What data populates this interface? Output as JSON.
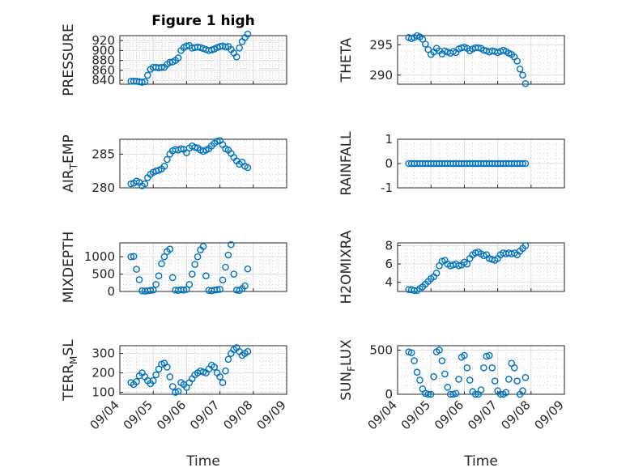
{
  "figure_title": "Figure 1 high",
  "x_axis_label": "Time",
  "x_tick_labels": [
    "09/04",
    "09/05",
    "09/06",
    "09/07",
    "09/08",
    "09/09"
  ],
  "marker_color": "#0072BD",
  "chart_data": [
    {
      "type": "scatter",
      "ylabel": "PRESSURE",
      "title": "Figure 1 high",
      "grid": true,
      "minor_grid": true,
      "ylim": [
        832,
        930
      ],
      "yticks": [
        840,
        860,
        880,
        900,
        920
      ],
      "x_start": "09/04 08:00",
      "x_step_hours": 2,
      "y": [
        838,
        838,
        838,
        837,
        836,
        837,
        850,
        862,
        866,
        866,
        865,
        866,
        866,
        872,
        876,
        877,
        880,
        885,
        900,
        906,
        909,
        910,
        905,
        906,
        907,
        906,
        904,
        902,
        900,
        901,
        903,
        906,
        908,
        909,
        907,
        908,
        902,
        895,
        887,
        905,
        918,
        926,
        933
      ]
    },
    {
      "type": "scatter",
      "ylabel": "THETA",
      "grid": true,
      "minor_grid": true,
      "ylim": [
        288.5,
        296.5
      ],
      "yticks": [
        290,
        295
      ],
      "x_start": "09/04 08:00",
      "x_step_hours": 2,
      "y": [
        296.2,
        296.0,
        296.2,
        296.5,
        296.3,
        295.9,
        295.1,
        294.2,
        293.4,
        293.8,
        294.4,
        294.0,
        293.5,
        294.0,
        293.8,
        293.6,
        293.9,
        293.7,
        294.3,
        294.5,
        294.6,
        294.4,
        294.0,
        294.3,
        294.5,
        294.5,
        294.4,
        294.1,
        294.0,
        293.8,
        294.0,
        293.9,
        293.7,
        293.9,
        294.1,
        293.9,
        293.6,
        293.4,
        293.0,
        292.3,
        291.0,
        290.0,
        288.6
      ]
    },
    {
      "type": "scatter",
      "ylabel": "AIR_TEMP",
      "grid": true,
      "minor_grid": true,
      "ylim": [
        280,
        287.2
      ],
      "yticks": [
        280,
        285
      ],
      "x_start": "09/04 08:00",
      "x_step_hours": 2,
      "y": [
        280.6,
        280.7,
        281.0,
        280.8,
        280.3,
        280.6,
        281.5,
        282.0,
        282.3,
        282.5,
        282.6,
        282.8,
        283.2,
        284.2,
        285.0,
        285.5,
        285.7,
        285.6,
        285.8,
        285.7,
        285.2,
        285.9,
        286.2,
        286.0,
        285.9,
        285.6,
        285.4,
        285.6,
        285.8,
        286.2,
        286.6,
        286.9,
        287.0,
        286.4,
        285.8,
        285.6,
        285.1,
        284.5,
        284.0,
        283.5,
        283.8,
        283.2,
        283.0
      ]
    },
    {
      "type": "scatter",
      "ylabel": "RAINFALL",
      "grid": true,
      "minor_grid": true,
      "ylim": [
        -1,
        1
      ],
      "yticks": [
        -1,
        0,
        1
      ],
      "x_start": "09/04 08:00",
      "x_step_hours": 2,
      "y": [
        0,
        0,
        0,
        0,
        0,
        0,
        0,
        0,
        0,
        0,
        0,
        0,
        0,
        0,
        0,
        0,
        0,
        0,
        0,
        0,
        0,
        0,
        0,
        0,
        0,
        0,
        0,
        0,
        0,
        0,
        0,
        0,
        0,
        0,
        0,
        0,
        0,
        0,
        0,
        0,
        0,
        0,
        0
      ]
    },
    {
      "type": "scatter",
      "ylabel": "MIXDEPTH",
      "grid": true,
      "minor_grid": true,
      "ylim": [
        0,
        1400
      ],
      "yticks": [
        0,
        500,
        1000
      ],
      "x_start": "09/04 08:00",
      "x_step_hours": 2,
      "y": [
        1000,
        1010,
        640,
        340,
        20,
        10,
        20,
        30,
        40,
        200,
        450,
        800,
        1000,
        1150,
        1220,
        400,
        40,
        30,
        50,
        40,
        60,
        200,
        500,
        780,
        1000,
        1200,
        1300,
        450,
        30,
        20,
        40,
        50,
        60,
        330,
        700,
        1050,
        1350,
        500,
        40,
        30,
        80,
        160,
        650
      ]
    },
    {
      "type": "scatter",
      "ylabel": "H2OMIXRA",
      "grid": true,
      "minor_grid": true,
      "ylim": [
        3,
        8.3
      ],
      "yticks": [
        4,
        6,
        8
      ],
      "x_start": "09/04 08:00",
      "x_step_hours": 2,
      "y": [
        3.2,
        3.2,
        3.1,
        3.1,
        3.3,
        3.5,
        3.8,
        4.1,
        4.4,
        4.6,
        5.0,
        5.8,
        6.3,
        6.4,
        6.0,
        5.8,
        5.9,
        6.0,
        5.8,
        5.9,
        6.2,
        6.0,
        6.6,
        7.0,
        7.2,
        7.3,
        7.1,
        6.9,
        7.0,
        6.6,
        6.5,
        6.4,
        6.6,
        7.0,
        7.2,
        7.1,
        7.2,
        7.1,
        7.2,
        7.0,
        7.4,
        7.7,
        8.0
      ]
    },
    {
      "type": "scatter",
      "ylabel": "TERR_MSL",
      "grid": true,
      "minor_grid": true,
      "ylim": [
        90,
        340
      ],
      "yticks": [
        100,
        200,
        300
      ],
      "x_start": "09/04 08:00",
      "x_step_hours": 2,
      "y": [
        150,
        140,
        155,
        185,
        200,
        180,
        160,
        145,
        160,
        190,
        220,
        245,
        250,
        230,
        180,
        130,
        100,
        105,
        150,
        140,
        125,
        150,
        170,
        190,
        200,
        210,
        205,
        200,
        220,
        240,
        230,
        200,
        180,
        150,
        210,
        270,
        300,
        320,
        330,
        310,
        290,
        300,
        310
      ]
    },
    {
      "type": "scatter",
      "ylabel": "SUN_FLUX",
      "grid": true,
      "minor_grid": true,
      "ylim": [
        0,
        550
      ],
      "yticks": [
        0,
        500
      ],
      "x_start": "09/04 08:00",
      "x_step_hours": 2,
      "y": [
        480,
        470,
        380,
        250,
        160,
        60,
        10,
        0,
        0,
        200,
        480,
        500,
        380,
        230,
        80,
        0,
        0,
        10,
        170,
        420,
        440,
        300,
        160,
        30,
        0,
        0,
        50,
        300,
        430,
        440,
        300,
        150,
        40,
        0,
        0,
        20,
        170,
        350,
        300,
        150,
        0,
        40,
        190
      ]
    }
  ]
}
